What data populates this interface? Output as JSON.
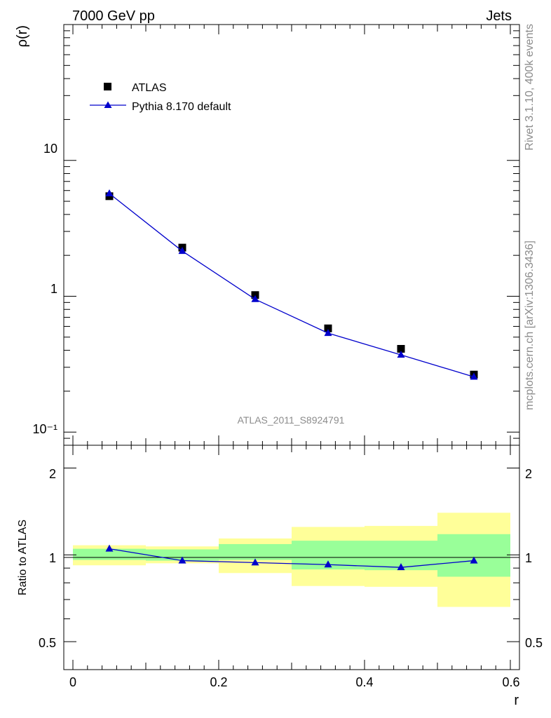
{
  "header": {
    "left": "7000 GeV pp",
    "right": "Jets"
  },
  "side_text": {
    "rivet": "Rivet 3.1.10,  400k events",
    "mcplots": "mcplots.cern.ch [arXiv:1306.3436]"
  },
  "analysis_id": "ATLAS_2011_S8924791",
  "colors": {
    "data": "#000000",
    "mc": "#0000cc",
    "band_inner": "#99ff99",
    "band_outer": "#ffff99"
  },
  "chart_data": [
    {
      "type": "scatter",
      "title": "",
      "xlabel": "r",
      "ylabel": "ρ(r)",
      "yscale": "log",
      "xlim": [
        -0.0125,
        0.6125
      ],
      "ylim": [
        0.08,
        100
      ],
      "ytick_labels": [
        "10⁻¹",
        "1",
        "10"
      ],
      "legend": {
        "placement": "top-left",
        "entries": [
          "ATLAS",
          "Pythia 8.170 default"
        ]
      },
      "series": [
        {
          "name": "ATLAS",
          "marker": "square",
          "x": [
            0.05,
            0.15,
            0.25,
            0.35,
            0.45,
            0.55
          ],
          "y": [
            5.45,
            2.28,
            1.02,
            0.58,
            0.41,
            0.265
          ]
        },
        {
          "name": "Pythia 8.170 default",
          "marker": "triangle",
          "x": [
            0.05,
            0.15,
            0.25,
            0.35,
            0.45,
            0.55
          ],
          "y": [
            5.7,
            2.15,
            0.95,
            0.535,
            0.37,
            0.255
          ]
        }
      ]
    },
    {
      "type": "line",
      "xlabel": "r",
      "ylabel": "Ratio to ATLAS",
      "xlim": [
        -0.0125,
        0.6125
      ],
      "ylim": [
        0.4,
        2.4
      ],
      "xtick_labels": [
        "0",
        "0.2",
        "0.4",
        "0.6"
      ],
      "ytick_labels": [
        "0.5",
        "1",
        "2"
      ],
      "bins": [
        [
          0.0,
          0.1
        ],
        [
          0.1,
          0.2
        ],
        [
          0.2,
          0.3
        ],
        [
          0.3,
          0.4
        ],
        [
          0.4,
          0.5
        ],
        [
          0.5,
          0.6
        ]
      ],
      "band_inner": [
        [
          0.96,
          1.05
        ],
        [
          0.955,
          1.045
        ],
        [
          0.96,
          1.09
        ],
        [
          0.89,
          1.12
        ],
        [
          0.885,
          1.12
        ],
        [
          0.84,
          1.18
        ]
      ],
      "band_outer": [
        [
          0.92,
          1.08
        ],
        [
          0.935,
          1.07
        ],
        [
          0.865,
          1.14
        ],
        [
          0.78,
          1.25
        ],
        [
          0.775,
          1.26
        ],
        [
          0.66,
          1.4
        ]
      ],
      "series": [
        {
          "name": "Pythia 8.170 default / ATLAS",
          "x": [
            0.05,
            0.15,
            0.25,
            0.35,
            0.45,
            0.55
          ],
          "y": [
            1.05,
            0.955,
            0.94,
            0.925,
            0.905,
            0.955
          ]
        }
      ]
    }
  ]
}
